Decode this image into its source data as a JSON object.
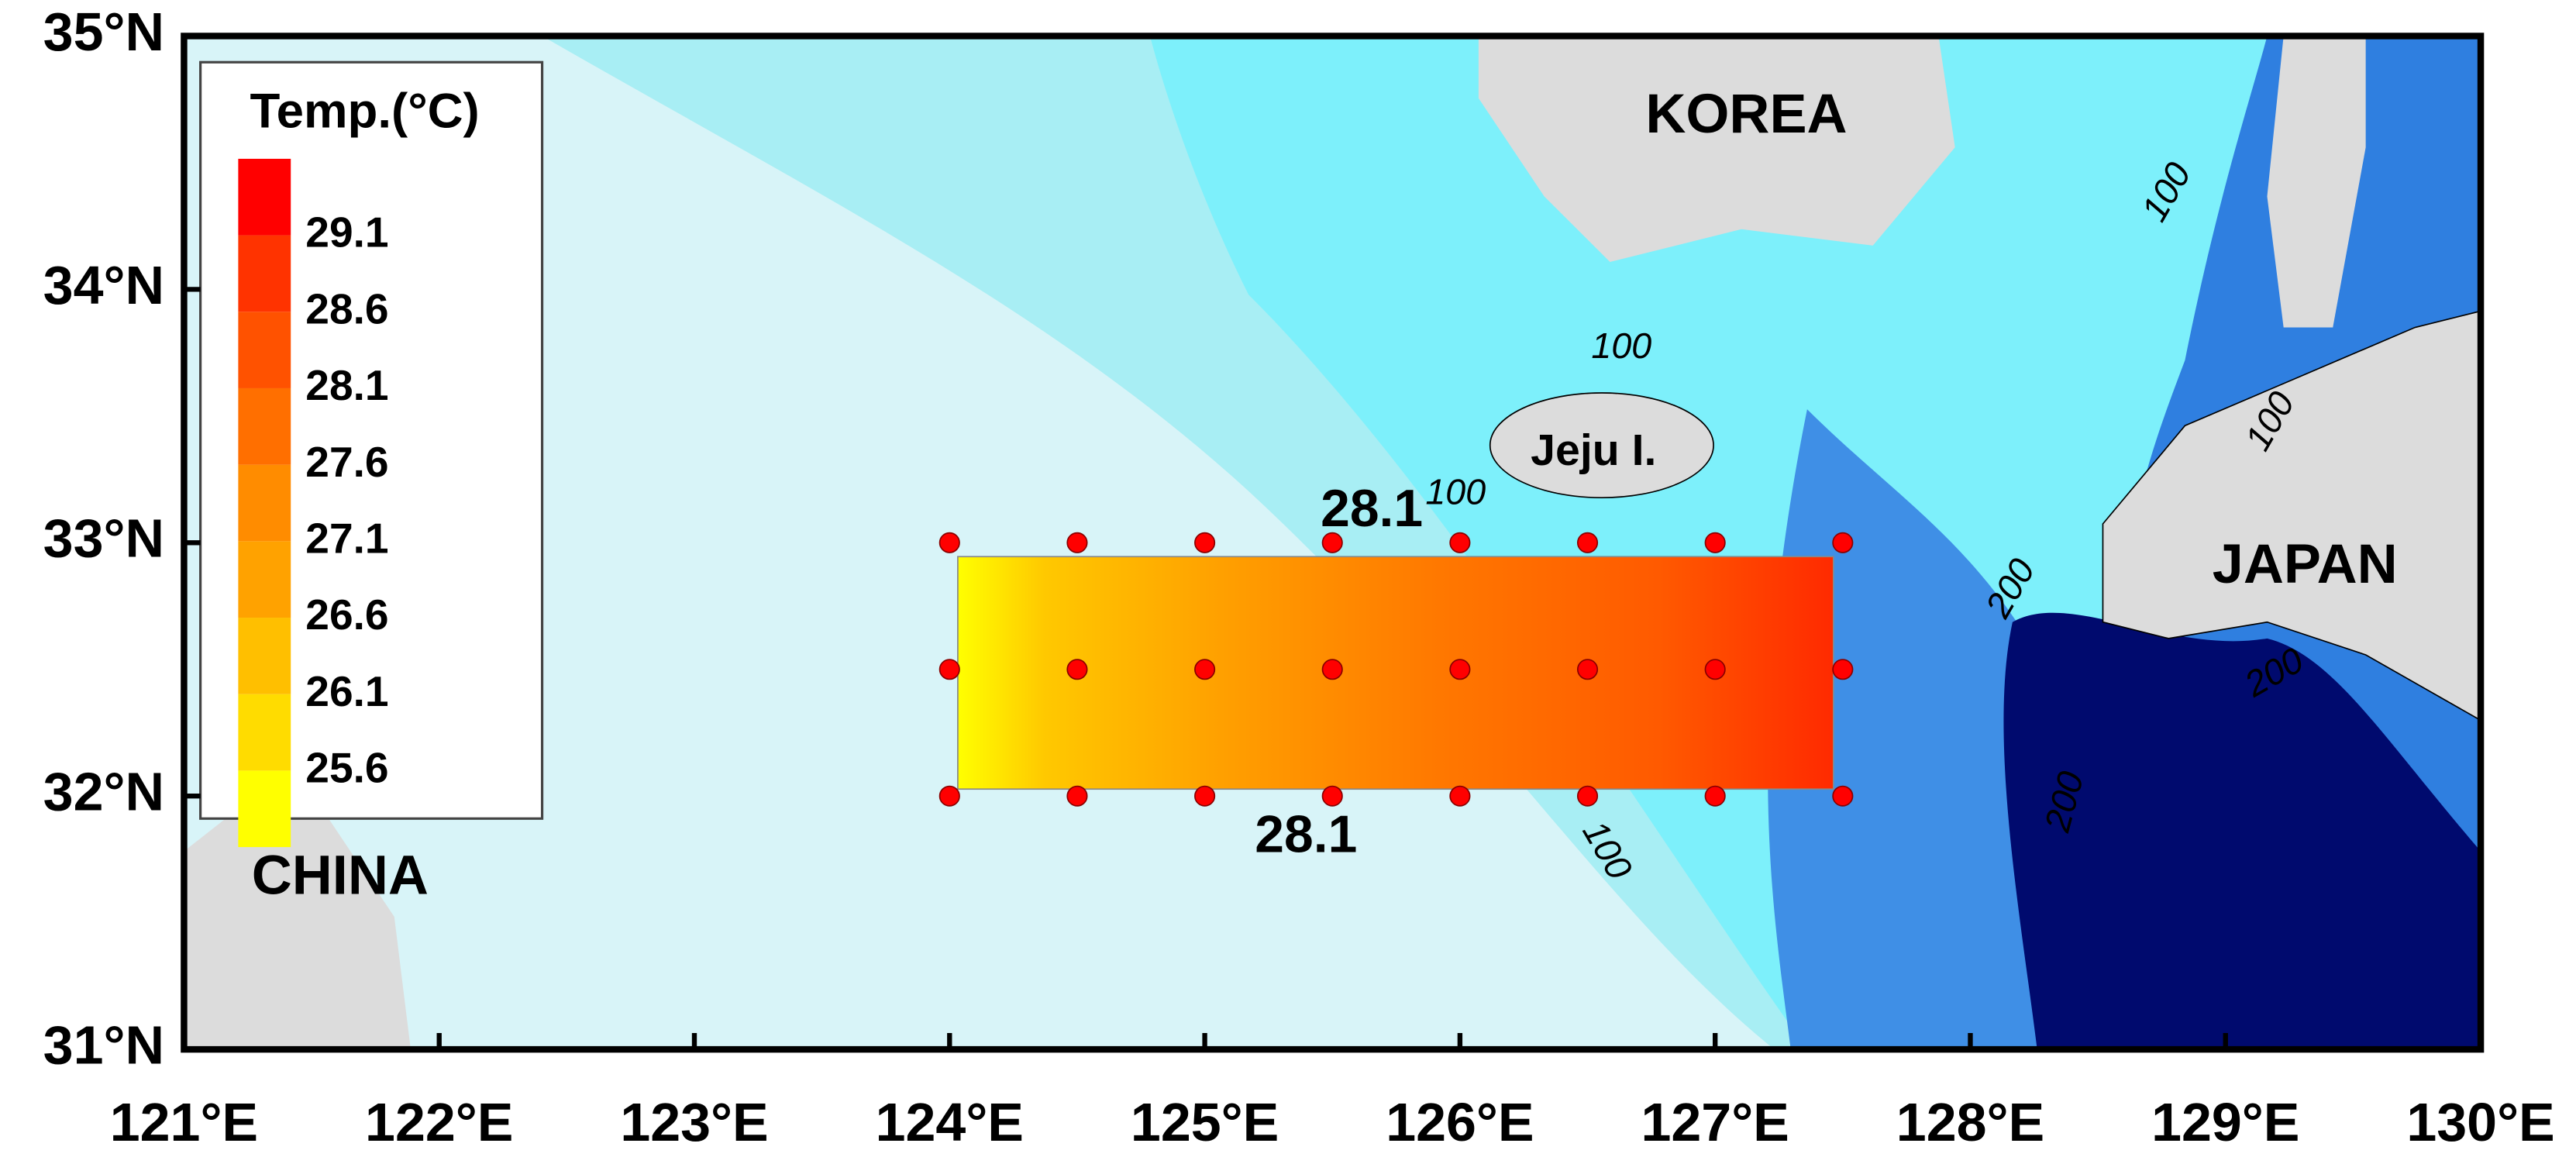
{
  "map": {
    "xlim": [
      121,
      130
    ],
    "ylim": [
      31,
      35
    ],
    "xticks": [
      {
        "value": 121,
        "label": "121°E"
      },
      {
        "value": 122,
        "label": "122°E"
      },
      {
        "value": 123,
        "label": "123°E"
      },
      {
        "value": 124,
        "label": "124°E"
      },
      {
        "value": 125,
        "label": "125°E"
      },
      {
        "value": 126,
        "label": "126°E"
      },
      {
        "value": 127,
        "label": "127°E"
      },
      {
        "value": 128,
        "label": "128°E"
      },
      {
        "value": 129,
        "label": "129°E"
      },
      {
        "value": 130,
        "label": "130°E"
      }
    ],
    "yticks": [
      {
        "value": 31,
        "label": "31°N"
      },
      {
        "value": 32,
        "label": "32°N"
      },
      {
        "value": 33,
        "label": "33°N"
      },
      {
        "value": 34,
        "label": "34°N"
      },
      {
        "value": 35,
        "label": "35°N"
      }
    ],
    "legend": {
      "title": "Temp.(°C)",
      "levels": [
        25.6,
        26.1,
        26.6,
        27.1,
        27.6,
        28.1,
        28.6,
        29.1
      ],
      "colors": [
        "#ffff00",
        "#ffdc00",
        "#ffbf00",
        "#ffa200",
        "#ff8c00",
        "#ff6f00",
        "#ff5200",
        "#ff3300",
        "#ff0000"
      ]
    },
    "place_labels": [
      "KOREA",
      "CHINA",
      "JAPAN",
      "Jeju I."
    ],
    "depth_contour_labels": [
      100,
      100,
      100,
      100,
      100,
      200,
      200,
      200
    ],
    "temp_contour_labels": [
      28.1,
      28.1
    ],
    "stations": {
      "color": "#ff0000",
      "lon": [
        124,
        124.5,
        125,
        125.5,
        126,
        126.5,
        127,
        127.5,
        124,
        124.5,
        125,
        125.5,
        126,
        126.5,
        127,
        127.5,
        124,
        124.5,
        125,
        125.5,
        126,
        126.5,
        127,
        127.5
      ],
      "lat": [
        33,
        33,
        33,
        33,
        33,
        33,
        33,
        33,
        32.5,
        32.5,
        32.5,
        32.5,
        32.5,
        32.5,
        32.5,
        32.5,
        32,
        32,
        32,
        32,
        32,
        32,
        32,
        32
      ]
    }
  }
}
